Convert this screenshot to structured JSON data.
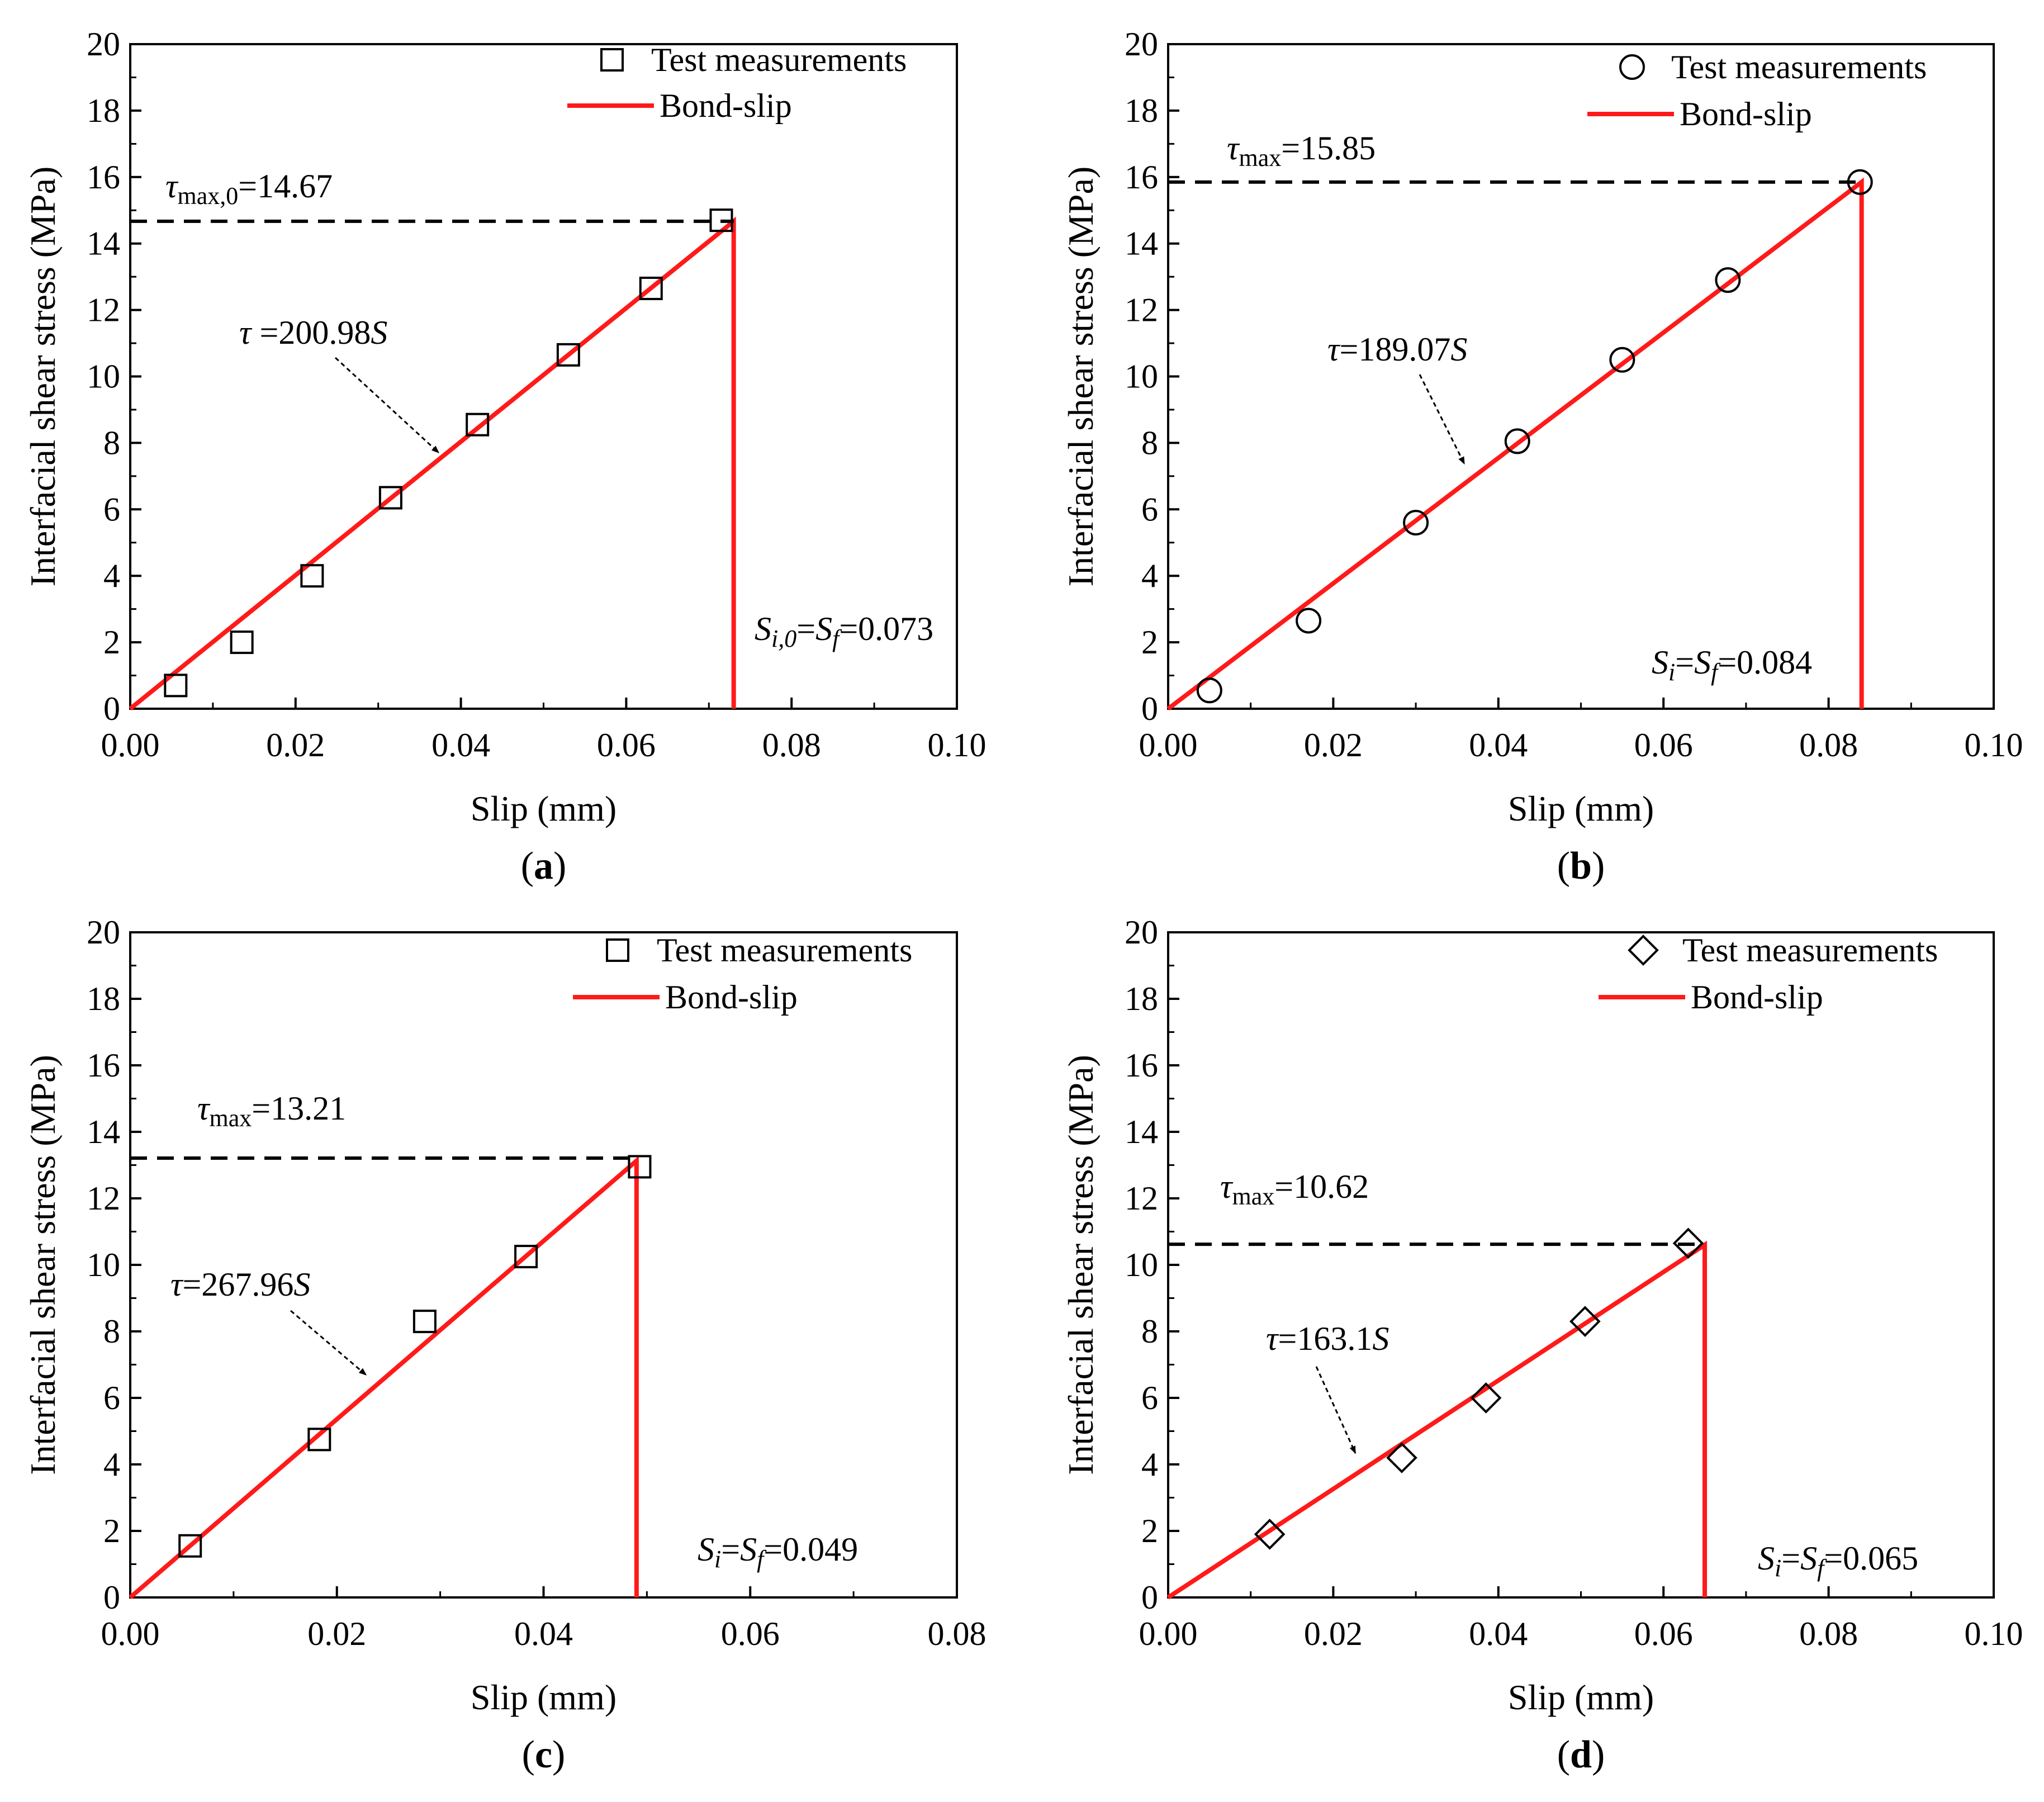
{
  "figure": {
    "y_axis_title": "Interfacial shear stress (MPa)",
    "y_axis_title_a": "Interfacial  shear stress (MPa)",
    "x_axis_title": "Slip (mm)",
    "legend_marker_label": "Test measurements",
    "legend_line_label": "Bond-slip",
    "line_color": "#ff1a1a",
    "marker_color": "#000000"
  },
  "chart_data": [
    {
      "id": "a",
      "type": "scatter",
      "panel_label": "a",
      "marker": "square",
      "xlim": [
        0,
        0.1
      ],
      "ylim": [
        0,
        20
      ],
      "x_ticks": [
        "0.00",
        "0.02",
        "0.04",
        "0.06",
        "0.08",
        "0.10"
      ],
      "y_ticks": [
        "0",
        "2",
        "4",
        "6",
        "8",
        "10",
        "12",
        "14",
        "16",
        "18",
        "20"
      ],
      "xlabel": "Slip (mm)",
      "ylabel": "Interfacial  shear stress (MPa)",
      "series": [
        {
          "name": "Test measurements",
          "x": [
            0.0055,
            0.0135,
            0.022,
            0.0315,
            0.042,
            0.053,
            0.063,
            0.0715
          ],
          "y": [
            0.7,
            2.0,
            4.0,
            6.35,
            8.55,
            10.65,
            12.65,
            14.7
          ]
        },
        {
          "name": "Bond-slip",
          "slope": 200.98,
          "s_f": 0.073,
          "tau_max": 14.67
        }
      ],
      "annotations": {
        "tau_max": {
          "symbol": "τ",
          "sub": "max,0",
          "value": "=14.67"
        },
        "equation": {
          "symbol": "τ",
          "value": " =200.98",
          "var": "S"
        },
        "slip": {
          "s1": "S",
          "s1_sub": "i,0",
          "eq": "=",
          "s2": "S",
          "s2_sub": "f",
          "value": "=0.073"
        }
      }
    },
    {
      "id": "b",
      "type": "scatter",
      "panel_label": "b",
      "marker": "circle",
      "xlim": [
        0,
        0.1
      ],
      "ylim": [
        0,
        20
      ],
      "x_ticks": [
        "0.00",
        "0.02",
        "0.04",
        "0.06",
        "0.08",
        "0.10"
      ],
      "y_ticks": [
        "0",
        "2",
        "4",
        "6",
        "8",
        "10",
        "12",
        "14",
        "16",
        "18",
        "20"
      ],
      "xlabel": "Slip (mm)",
      "ylabel": "Interfacial shear stress (MPa)",
      "series": [
        {
          "name": "Test measurements",
          "x": [
            0.005,
            0.017,
            0.03,
            0.0423,
            0.055,
            0.0678,
            0.0838
          ],
          "y": [
            0.55,
            2.65,
            5.6,
            8.05,
            10.5,
            12.9,
            15.85
          ]
        },
        {
          "name": "Bond-slip",
          "slope": 189.07,
          "s_f": 0.084,
          "tau_max": 15.85
        }
      ],
      "annotations": {
        "tau_max": {
          "symbol": "τ",
          "sub": "max",
          "value": "=15.85"
        },
        "equation": {
          "symbol": "τ",
          "value": "=189.07",
          "var": "S"
        },
        "slip": {
          "s1": "S",
          "s1_sub": "i",
          "eq": "=",
          "s2": "S",
          "s2_sub": "f",
          "value": "=0.084"
        }
      }
    },
    {
      "id": "c",
      "type": "scatter",
      "panel_label": "c",
      "marker": "square",
      "xlim": [
        0,
        0.08
      ],
      "ylim": [
        0,
        20
      ],
      "x_ticks": [
        "0.00",
        "0.02",
        "0.04",
        "0.06",
        "0.08"
      ],
      "y_ticks": [
        "0",
        "2",
        "4",
        "6",
        "8",
        "10",
        "12",
        "14",
        "16",
        "18",
        "20"
      ],
      "xlabel": "Slip (mm)",
      "ylabel": "Interfacial shear stress (MPa)",
      "series": [
        {
          "name": "Test measurements",
          "x": [
            0.0058,
            0.0183,
            0.0285,
            0.0383,
            0.0493
          ],
          "y": [
            1.55,
            4.75,
            8.3,
            10.25,
            12.95
          ]
        },
        {
          "name": "Bond-slip",
          "slope": 267.96,
          "s_f": 0.049,
          "tau_max": 13.21
        }
      ],
      "annotations": {
        "tau_max": {
          "symbol": "τ",
          "sub": "max",
          "value": "=13.21"
        },
        "equation": {
          "symbol": "τ",
          "value": "=267.96",
          "var": "S"
        },
        "slip": {
          "s1": "S",
          "s1_sub": "i",
          "eq": "=",
          "s2": "S",
          "s2_sub": "f",
          "value": "=0.049"
        }
      }
    },
    {
      "id": "d",
      "type": "scatter",
      "panel_label": "d",
      "marker": "diamond",
      "xlim": [
        0,
        0.1
      ],
      "ylim": [
        0,
        20
      ],
      "x_ticks": [
        "0.00",
        "0.02",
        "0.04",
        "0.06",
        "0.08",
        "0.10"
      ],
      "y_ticks": [
        "0",
        "2",
        "4",
        "6",
        "8",
        "10",
        "12",
        "14",
        "16",
        "18",
        "20"
      ],
      "xlabel": "Slip (mm)",
      "ylabel": "Interfacial shear stress (MPa)",
      "series": [
        {
          "name": "Test measurements",
          "x": [
            0.0123,
            0.0283,
            0.0385,
            0.0505,
            0.063
          ],
          "y": [
            1.9,
            4.2,
            6.0,
            8.3,
            10.65
          ]
        },
        {
          "name": "Bond-slip",
          "slope": 163.1,
          "s_f": 0.065,
          "tau_max": 10.62
        }
      ],
      "annotations": {
        "tau_max": {
          "symbol": "τ",
          "sub": "max",
          "value": "=10.62"
        },
        "equation": {
          "symbol": "τ",
          "value": "=163.1",
          "var": "S"
        },
        "slip": {
          "s1": "S",
          "s1_sub": "i",
          "eq": "=",
          "s2": "S",
          "s2_sub": "f",
          "value": "=0.065"
        }
      }
    }
  ]
}
